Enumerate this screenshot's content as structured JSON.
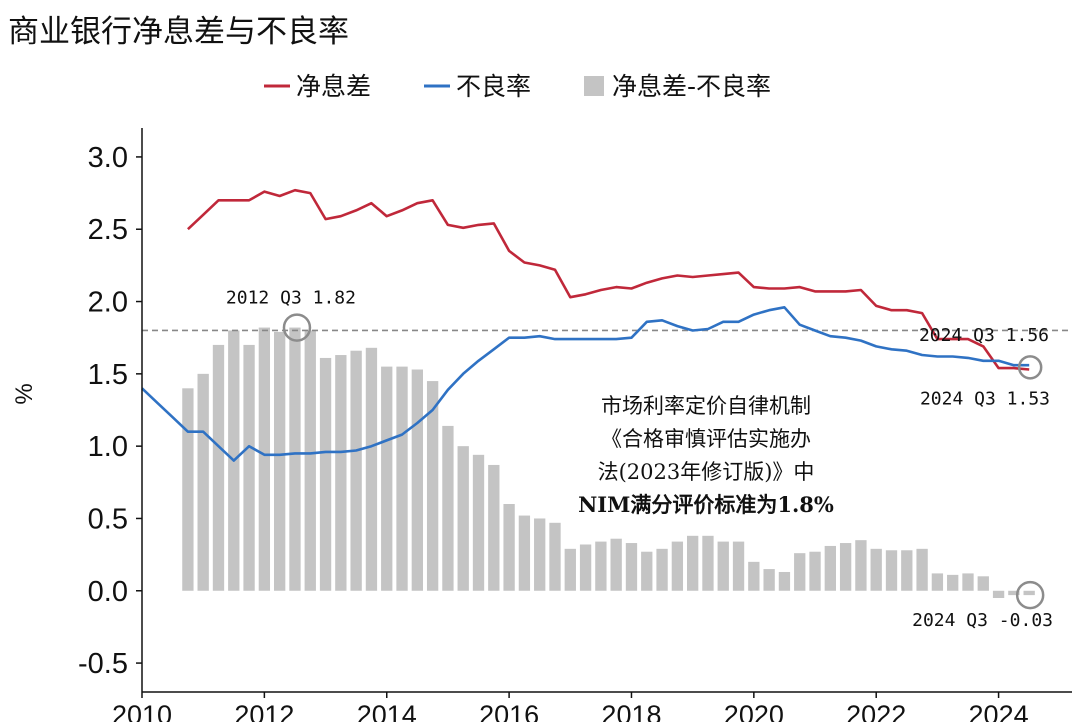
{
  "chart_data": {
    "type": "bar",
    "title": "商业银行净息差与不良率",
    "xlabel": "",
    "ylabel": "%",
    "xlim": [
      2010,
      2025.2
    ],
    "ylim": [
      -0.7,
      3.2
    ],
    "yticks": [
      "3.0",
      "2.5",
      "2.0",
      "1.5",
      "1.0",
      "0.5",
      "0.0",
      "-0.5"
    ],
    "xticks": [
      "2010",
      "2012",
      "2014",
      "2016",
      "2018",
      "2020",
      "2022",
      "2024"
    ],
    "legend_position": "top",
    "grid": false,
    "colors": {
      "nim": "#c0283a",
      "npl": "#2f72c4",
      "diff": "#c4c4c4",
      "reference": "#888888",
      "marker": "#8c8c8c"
    },
    "legend": [
      {
        "label": "净息差",
        "kind": "line",
        "color": "#c0283a"
      },
      {
        "label": "不良率",
        "kind": "line",
        "color": "#2f72c4"
      },
      {
        "label": "净息差-不良率",
        "kind": "bar",
        "color": "#c4c4c4"
      }
    ],
    "reference_line": {
      "y": 1.8,
      "style": "dashed"
    },
    "series": [
      {
        "name": "净息差-不良率",
        "kind": "bar",
        "x": [
          2010.75,
          2011.0,
          2011.25,
          2011.5,
          2011.75,
          2012.0,
          2012.25,
          2012.5,
          2012.75,
          2013.0,
          2013.25,
          2013.5,
          2013.75,
          2014.0,
          2014.25,
          2014.5,
          2014.75,
          2015.0,
          2015.25,
          2015.5,
          2015.75,
          2016.0,
          2016.25,
          2016.5,
          2016.75,
          2017.0,
          2017.25,
          2017.5,
          2017.75,
          2018.0,
          2018.25,
          2018.5,
          2018.75,
          2019.0,
          2019.25,
          2019.5,
          2019.75,
          2020.0,
          2020.25,
          2020.5,
          2020.75,
          2021.0,
          2021.25,
          2021.5,
          2021.75,
          2022.0,
          2022.25,
          2022.5,
          2022.75,
          2023.0,
          2023.25,
          2023.5,
          2023.75,
          2024.0,
          2024.25,
          2024.5
        ],
        "values": [
          1.4,
          1.5,
          1.7,
          1.8,
          1.7,
          1.82,
          1.79,
          1.82,
          1.8,
          1.61,
          1.63,
          1.66,
          1.68,
          1.55,
          1.55,
          1.53,
          1.45,
          1.14,
          1.0,
          0.94,
          0.87,
          0.6,
          0.52,
          0.5,
          0.47,
          0.29,
          0.32,
          0.34,
          0.36,
          0.33,
          0.27,
          0.29,
          0.34,
          0.38,
          0.38,
          0.34,
          0.34,
          0.2,
          0.15,
          0.13,
          0.26,
          0.27,
          0.31,
          0.33,
          0.35,
          0.29,
          0.28,
          0.28,
          0.29,
          0.12,
          0.11,
          0.12,
          0.1,
          -0.05,
          -0.03,
          -0.03
        ]
      },
      {
        "name": "净息差",
        "kind": "line",
        "x": [
          2010.75,
          2011.0,
          2011.25,
          2011.5,
          2011.75,
          2012.0,
          2012.25,
          2012.5,
          2012.75,
          2013.0,
          2013.25,
          2013.5,
          2013.75,
          2014.0,
          2014.25,
          2014.5,
          2014.75,
          2015.0,
          2015.25,
          2015.5,
          2015.75,
          2016.0,
          2016.25,
          2016.5,
          2016.75,
          2017.0,
          2017.25,
          2017.5,
          2017.75,
          2018.0,
          2018.25,
          2018.5,
          2018.75,
          2019.0,
          2019.25,
          2019.5,
          2019.75,
          2020.0,
          2020.25,
          2020.5,
          2020.75,
          2021.0,
          2021.25,
          2021.5,
          2021.75,
          2022.0,
          2022.25,
          2022.5,
          2022.75,
          2023.0,
          2023.25,
          2023.5,
          2023.75,
          2024.0,
          2024.25,
          2024.5
        ],
        "values": [
          2.5,
          2.6,
          2.7,
          2.7,
          2.7,
          2.76,
          2.73,
          2.77,
          2.75,
          2.57,
          2.59,
          2.63,
          2.68,
          2.59,
          2.63,
          2.68,
          2.7,
          2.53,
          2.51,
          2.53,
          2.54,
          2.35,
          2.27,
          2.25,
          2.22,
          2.03,
          2.05,
          2.08,
          2.1,
          2.09,
          2.13,
          2.16,
          2.18,
          2.17,
          2.18,
          2.19,
          2.2,
          2.1,
          2.09,
          2.09,
          2.1,
          2.07,
          2.07,
          2.07,
          2.08,
          1.97,
          1.94,
          1.94,
          1.92,
          1.74,
          1.74,
          1.74,
          1.69,
          1.54,
          1.54,
          1.53
        ]
      },
      {
        "name": "不良率",
        "kind": "line",
        "x": [
          2010.0,
          2010.25,
          2010.5,
          2010.75,
          2011.0,
          2011.25,
          2011.5,
          2011.75,
          2012.0,
          2012.25,
          2012.5,
          2012.75,
          2013.0,
          2013.25,
          2013.5,
          2013.75,
          2014.0,
          2014.25,
          2014.5,
          2014.75,
          2015.0,
          2015.25,
          2015.5,
          2015.75,
          2016.0,
          2016.25,
          2016.5,
          2016.75,
          2017.0,
          2017.25,
          2017.5,
          2017.75,
          2018.0,
          2018.25,
          2018.5,
          2018.75,
          2019.0,
          2019.25,
          2019.5,
          2019.75,
          2020.0,
          2020.25,
          2020.5,
          2020.75,
          2021.0,
          2021.25,
          2021.5,
          2021.75,
          2022.0,
          2022.25,
          2022.5,
          2022.75,
          2023.0,
          2023.25,
          2023.5,
          2023.75,
          2024.0,
          2024.25,
          2024.5
        ],
        "values": [
          1.4,
          1.3,
          1.2,
          1.1,
          1.1,
          1.0,
          0.9,
          1.0,
          0.94,
          0.94,
          0.95,
          0.95,
          0.96,
          0.96,
          0.97,
          1.0,
          1.04,
          1.08,
          1.16,
          1.25,
          1.39,
          1.5,
          1.59,
          1.67,
          1.75,
          1.75,
          1.76,
          1.74,
          1.74,
          1.74,
          1.74,
          1.74,
          1.75,
          1.86,
          1.87,
          1.83,
          1.8,
          1.81,
          1.86,
          1.86,
          1.91,
          1.94,
          1.96,
          1.84,
          1.8,
          1.76,
          1.75,
          1.73,
          1.69,
          1.67,
          1.66,
          1.63,
          1.62,
          1.62,
          1.61,
          1.59,
          1.59,
          1.56,
          1.56
        ]
      }
    ],
    "annotations": [
      {
        "text": "2012 Q3 1.82",
        "x": 2012.5,
        "y": 1.82,
        "target": "净息差-不良率"
      },
      {
        "text": "2024 Q3 1.56",
        "x": 2024.5,
        "y": 1.56,
        "target": "不良率"
      },
      {
        "text": "2024 Q3 1.53",
        "x": 2024.5,
        "y": 1.53,
        "target": "净息差"
      },
      {
        "text": "2024 Q3 -0.03",
        "x": 2024.5,
        "y": -0.03,
        "target": "净息差-不良率"
      }
    ],
    "note": {
      "lines": [
        "市场利率定价自律机制",
        "《合格审慎评估实施办",
        "法(2023年修订版)》中"
      ],
      "last_line": "NIM满分评价标准为1.8%"
    }
  }
}
